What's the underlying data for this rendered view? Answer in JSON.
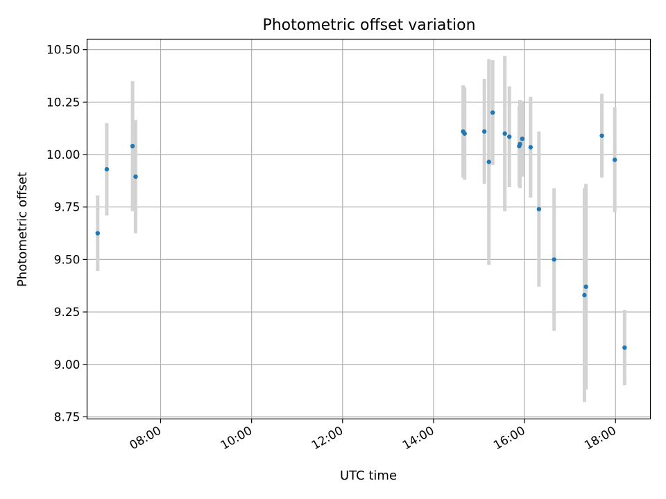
{
  "chart_data": {
    "type": "scatter",
    "title": "Photometric offset variation",
    "xlabel": "UTC time",
    "ylabel": "Photometric offset",
    "x_axis_kind": "time-of-day (UTC)",
    "xlim": [
      "06:23",
      "18:46"
    ],
    "ylim": [
      8.74,
      10.55
    ],
    "grid": true,
    "x_ticks": [
      "08:00",
      "10:00",
      "12:00",
      "14:00",
      "16:00",
      "18:00"
    ],
    "y_ticks": [
      "8.75",
      "9.00",
      "9.25",
      "9.50",
      "9.75",
      "10.00",
      "10.25",
      "10.50"
    ],
    "colors": {
      "points": "#1f77b4",
      "error_bars": "#d3d3d3",
      "grid": "#b0b0b0"
    },
    "points": [
      {
        "t": "06:37",
        "y": 9.625,
        "err": 0.18
      },
      {
        "t": "06:49",
        "y": 9.93,
        "err": 0.22
      },
      {
        "t": "07:23",
        "y": 10.04,
        "err": 0.31
      },
      {
        "t": "07:27",
        "y": 9.895,
        "err": 0.27
      },
      {
        "t": "14:39",
        "y": 10.11,
        "err": 0.22
      },
      {
        "t": "14:41",
        "y": 10.1,
        "err": 0.22
      },
      {
        "t": "15:07",
        "y": 10.11,
        "err": 0.25
      },
      {
        "t": "15:13",
        "y": 9.965,
        "err": 0.49
      },
      {
        "t": "15:18",
        "y": 10.2,
        "err": 0.25
      },
      {
        "t": "15:34",
        "y": 10.1,
        "err": 0.37
      },
      {
        "t": "15:40",
        "y": 10.085,
        "err": 0.24
      },
      {
        "t": "15:53",
        "y": 10.04,
        "err": 0.19
      },
      {
        "t": "15:54",
        "y": 10.05,
        "err": 0.21
      },
      {
        "t": "15:57",
        "y": 10.075,
        "err": 0.18
      },
      {
        "t": "16:08",
        "y": 10.035,
        "err": 0.24
      },
      {
        "t": "16:19",
        "y": 9.74,
        "err": 0.37
      },
      {
        "t": "16:39",
        "y": 9.5,
        "err": 0.34
      },
      {
        "t": "17:19",
        "y": 9.33,
        "err": 0.51
      },
      {
        "t": "17:21",
        "y": 9.37,
        "err": 0.49
      },
      {
        "t": "17:42",
        "y": 10.09,
        "err": 0.2
      },
      {
        "t": "17:59",
        "y": 9.975,
        "err": 0.25
      },
      {
        "t": "18:12",
        "y": 9.08,
        "err": 0.18
      }
    ]
  }
}
